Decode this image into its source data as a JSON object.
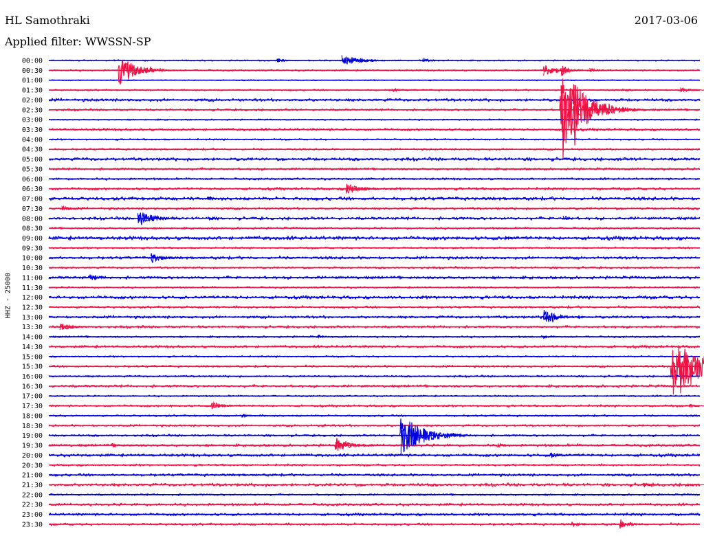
{
  "header": {
    "station": "HL Samothraki",
    "date": "2017-03-06",
    "filter": "Applied filter: WWSSN-SP"
  },
  "scale_label": "HHZ - 25000",
  "colors": {
    "even": "#0000dd",
    "odd": "#ee1144"
  },
  "chart_data": {
    "type": "line",
    "title": "HL Samothraki",
    "subtitle": "Applied filter: WWSSN-SP",
    "ylabel": "HHZ - 25000",
    "rows": [
      "00:00",
      "00:30",
      "01:00",
      "01:30",
      "02:00",
      "02:30",
      "03:00",
      "03:30",
      "04:00",
      "04:30",
      "05:00",
      "05:30",
      "06:00",
      "06:30",
      "07:00",
      "07:30",
      "08:00",
      "08:30",
      "09:00",
      "09:30",
      "10:00",
      "10:30",
      "11:00",
      "11:30",
      "12:00",
      "12:30",
      "13:00",
      "13:30",
      "14:00",
      "14:30",
      "15:00",
      "15:30",
      "16:00",
      "16:30",
      "17:00",
      "17:30",
      "18:00",
      "18:30",
      "19:00",
      "19:30",
      "20:00",
      "20:30",
      "21:00",
      "21:30",
      "22:00",
      "22:30",
      "23:00",
      "23:30"
    ],
    "row_minutes": 30,
    "noise": [
      1.0,
      1.3,
      0.8,
      1.2,
      2.2,
      1.6,
      1.0,
      1.9,
      1.2,
      1.4,
      2.4,
      1.8,
      1.6,
      2.0,
      2.6,
      1.8,
      2.2,
      1.6,
      2.8,
      1.4,
      2.2,
      1.6,
      2.2,
      1.4,
      2.4,
      1.8,
      2.0,
      1.9,
      1.4,
      2.0,
      1.2,
      1.6,
      1.4,
      2.0,
      1.2,
      1.6,
      1.4,
      1.6,
      1.6,
      2.0,
      2.2,
      1.6,
      2.0,
      2.4,
      1.4,
      2.0,
      2.0,
      1.8
    ],
    "events": [
      {
        "row": 0,
        "minute": 10.5,
        "amp": 4,
        "dur": 0.7
      },
      {
        "row": 0,
        "minute": 13.5,
        "amp": 8,
        "dur": 1.6
      },
      {
        "row": 0,
        "minute": 17.2,
        "amp": 3,
        "dur": 1.0
      },
      {
        "row": 1,
        "minute": 3.2,
        "amp": 22,
        "dur": 1.6
      },
      {
        "row": 1,
        "minute": 22.8,
        "amp": 8,
        "dur": 1.3
      },
      {
        "row": 1,
        "minute": 23.6,
        "amp": 12,
        "dur": 0.5
      },
      {
        "row": 1,
        "minute": 24.9,
        "amp": 3,
        "dur": 0.9
      },
      {
        "row": 3,
        "minute": 15.8,
        "amp": 3,
        "dur": 0.7
      },
      {
        "row": 3,
        "minute": 26.4,
        "amp": 3,
        "dur": 0.7
      },
      {
        "row": 3,
        "minute": 29.1,
        "amp": 4,
        "dur": 0.9
      },
      {
        "row": 5,
        "minute": 23.6,
        "amp": 80,
        "dur": 1.8
      },
      {
        "row": 13,
        "minute": 13.7,
        "amp": 9,
        "dur": 1.3
      },
      {
        "row": 14,
        "minute": 7.3,
        "amp": 3,
        "dur": 0.7
      },
      {
        "row": 15,
        "minute": 0.6,
        "amp": 4,
        "dur": 0.9
      },
      {
        "row": 15,
        "minute": 6.1,
        "amp": 2,
        "dur": 0.6
      },
      {
        "row": 16,
        "minute": 4.1,
        "amp": 13,
        "dur": 1.3
      },
      {
        "row": 16,
        "minute": 7.3,
        "amp": 3,
        "dur": 0.8
      },
      {
        "row": 16,
        "minute": 23.7,
        "amp": 5,
        "dur": 0.5
      },
      {
        "row": 18,
        "minute": 21.0,
        "amp": 3,
        "dur": 0.6
      },
      {
        "row": 20,
        "minute": 4.7,
        "amp": 7,
        "dur": 1.1
      },
      {
        "row": 22,
        "minute": 1.9,
        "amp": 5,
        "dur": 0.9
      },
      {
        "row": 26,
        "minute": 22.8,
        "amp": 11,
        "dur": 1.2
      },
      {
        "row": 26,
        "minute": 24.4,
        "amp": 3,
        "dur": 0.6
      },
      {
        "row": 27,
        "minute": 0.5,
        "amp": 6,
        "dur": 1.1
      },
      {
        "row": 27,
        "minute": 4.1,
        "amp": 2,
        "dur": 0.6
      },
      {
        "row": 28,
        "minute": 12.4,
        "amp": 3,
        "dur": 0.6
      },
      {
        "row": 28,
        "minute": 22.8,
        "amp": 3,
        "dur": 0.5
      },
      {
        "row": 31,
        "minute": 28.7,
        "amp": 60,
        "dur": 2.2
      },
      {
        "row": 35,
        "minute": 7.5,
        "amp": 6,
        "dur": 1.1
      },
      {
        "row": 35,
        "minute": 5.6,
        "amp": 2,
        "dur": 0.5
      },
      {
        "row": 35,
        "minute": 29.5,
        "amp": 3,
        "dur": 0.6
      },
      {
        "row": 36,
        "minute": 8.9,
        "amp": 3,
        "dur": 0.5
      },
      {
        "row": 37,
        "minute": 12.6,
        "amp": 3,
        "dur": 0.5
      },
      {
        "row": 37,
        "minute": 16.6,
        "amp": 2,
        "dur": 0.5
      },
      {
        "row": 38,
        "minute": 16.2,
        "amp": 32,
        "dur": 1.9
      },
      {
        "row": 39,
        "minute": 13.2,
        "amp": 10,
        "dur": 1.4
      },
      {
        "row": 39,
        "minute": 2.9,
        "amp": 3,
        "dur": 0.9
      },
      {
        "row": 39,
        "minute": 20.7,
        "amp": 3,
        "dur": 0.7
      },
      {
        "row": 40,
        "minute": 23.1,
        "amp": 5,
        "dur": 0.9
      },
      {
        "row": 43,
        "minute": 27.4,
        "amp": 3,
        "dur": 0.8
      },
      {
        "row": 43,
        "minute": 29.3,
        "amp": 3,
        "dur": 0.7
      },
      {
        "row": 47,
        "minute": 24.1,
        "amp": 4,
        "dur": 0.8
      },
      {
        "row": 47,
        "minute": 26.3,
        "amp": 6,
        "dur": 1.0
      }
    ]
  }
}
